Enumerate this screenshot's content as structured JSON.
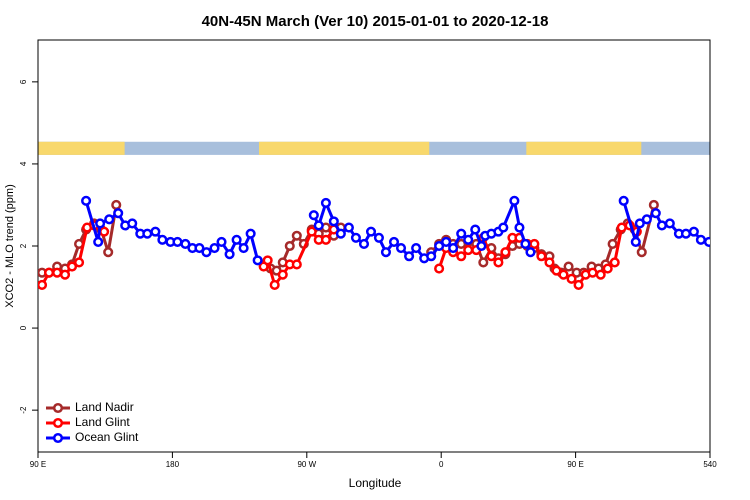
{
  "chart_data": {
    "type": "line",
    "title": "40N-45N March (Ver 10)   2015-01-01 to 2020-12-18",
    "x_label": "Longitude",
    "y_label": "XCO2 - MLO trend (ppm)",
    "xlim": [
      90,
      540
    ],
    "ylim": [
      -3.02,
      7.02
    ],
    "xticks": [
      {
        "value": 90,
        "label": "90 E"
      },
      180,
      {
        "value": 270,
        "label": "90 W"
      },
      {
        "value": 360,
        "label": "0"
      },
      {
        "value": 450,
        "label": "90 E"
      },
      540
    ],
    "yticks": [
      -2,
      0,
      2,
      4,
      6
    ],
    "legend": "bottom-left",
    "land_mask": {
      "land_color": "#f8d86c",
      "ocean_color": "#a8bfdc",
      "ylim": [
        4.22,
        4.54
      ],
      "land": [
        [
          90,
          148
        ],
        [
          238,
          352
        ],
        [
          417,
          494
        ]
      ]
    },
    "series": [
      {
        "name": "Land Nadir",
        "color": "#a52a2a",
        "x": [
          92.7,
          97.4,
          102.8,
          108.1,
          112.8,
          117.5,
          122.2,
          127.6,
          132.3,
          137.0,
          142.4,
          200,
          241.1,
          245.8,
          249.8,
          253.9,
          258.6,
          263.3,
          268.0,
          273.3,
          278.0,
          282.8,
          288.1,
          292.8,
          320,
          353.3,
          358.6,
          363.3,
          368.0,
          373.4,
          378.1,
          383.5,
          388.2,
          393.6,
          398.3,
          403.0,
          407.7,
          412.4,
          417.7,
          422.4,
          427.1,
          432.5,
          435.9,
          440.6,
          445.3,
          450.7,
          455.4,
          460.7,
          465.4,
          470.1,
          474.8,
          480.2,
          484.9,
          489.6,
          494.3,
          502.4
        ],
        "values": [
          1.35,
          1.35,
          1.5,
          1.45,
          1.55,
          2.05,
          2.4,
          2.55,
          2.4,
          1.85,
          3.0,
          null,
          1.55,
          1.45,
          1.4,
          1.6,
          2.0,
          2.25,
          2.05,
          2.4,
          2.3,
          2.45,
          2.25,
          2.45,
          null,
          1.85,
          2.05,
          2.15,
          2.05,
          2.05,
          2.1,
          2.05,
          1.6,
          1.95,
          1.7,
          1.8,
          2.0,
          2.05,
          2.0,
          1.95,
          1.8,
          1.75,
          1.45,
          1.35,
          1.5,
          1.35,
          1.35,
          1.5,
          1.45,
          1.55,
          2.05,
          2.4,
          2.55,
          2.4,
          1.85,
          3.0
        ]
      },
      {
        "name": "Land Glint",
        "color": "#ff0000",
        "x": [
          92.7,
          97.4,
          102.8,
          108.1,
          112.8,
          117.5,
          122.9,
          127.6,
          134.3,
          200,
          241.1,
          243.8,
          248.5,
          253.9,
          258.6,
          263.3,
          273.3,
          278.0,
          282.8,
          288.1,
          320,
          358.6,
          363.3,
          368.0,
          373.4,
          378.1,
          383.5,
          388.2,
          393.6,
          398.3,
          403.0,
          407.7,
          412.4,
          417.7,
          422.4,
          427.1,
          432.5,
          437.2,
          441.9,
          447.3,
          452.0,
          456.7,
          461.4,
          466.8,
          471.5,
          476.2,
          480.9,
          486.2,
          491.0
        ],
        "values": [
          1.05,
          1.35,
          1.35,
          1.3,
          1.5,
          1.6,
          2.45,
          2.5,
          2.35,
          null,
          1.5,
          1.65,
          1.05,
          1.3,
          1.55,
          1.55,
          2.35,
          2.15,
          2.15,
          2.4,
          null,
          1.45,
          1.95,
          1.85,
          1.75,
          1.9,
          1.9,
          2.2,
          1.75,
          1.6,
          1.85,
          2.2,
          2.2,
          2.05,
          2.05,
          1.75,
          1.6,
          1.4,
          1.3,
          1.2,
          1.05,
          1.3,
          1.35,
          1.3,
          1.45,
          1.6,
          2.45,
          2.5,
          2.35
        ]
      },
      {
        "name": "Ocean Glint",
        "color": "#0000ff",
        "x": [
          122.2,
          130.3,
          131.6,
          137.7,
          143.7,
          148.4,
          153.1,
          158.5,
          163.2,
          168.6,
          173.3,
          178.7,
          183.4,
          188.7,
          193.4,
          198.1,
          202.8,
          208.2,
          212.9,
          218.3,
          223.0,
          227.7,
          232.4,
          237.1,
          255,
          274.7,
          278.0,
          282.8,
          288.1,
          292.8,
          298.2,
          302.9,
          308.3,
          313.0,
          318.3,
          323.0,
          328.4,
          333.1,
          338.5,
          343.2,
          348.6,
          353.3,
          358.6,
          363.3,
          368.0,
          373.4,
          378.1,
          382.8,
          386.9,
          389.5,
          393.6,
          398.3,
          401.6,
          409.0,
          412.4,
          416.4,
          419.8,
          450,
          482.2,
          490.3,
          493.0,
          497.7,
          503.7,
          507.8,
          513.1,
          519.2,
          523.9,
          529.2,
          533.9,
          539.3
        ],
        "values": [
          3.1,
          2.1,
          2.55,
          2.65,
          2.8,
          2.5,
          2.55,
          2.3,
          2.3,
          2.35,
          2.15,
          2.1,
          2.1,
          2.05,
          1.95,
          1.95,
          1.85,
          1.95,
          2.1,
          1.8,
          2.15,
          1.95,
          2.3,
          1.65,
          null,
          2.75,
          2.5,
          3.05,
          2.6,
          2.3,
          2.45,
          2.2,
          2.05,
          2.35,
          2.2,
          1.85,
          2.1,
          1.95,
          1.75,
          1.95,
          1.7,
          1.75,
          2.0,
          2.1,
          1.95,
          2.3,
          2.15,
          2.4,
          2.0,
          2.25,
          2.3,
          2.35,
          2.45,
          3.1,
          2.45,
          2.05,
          1.85,
          null,
          3.1,
          2.1,
          2.55,
          2.65,
          2.8,
          2.5,
          2.55,
          2.3,
          2.3,
          2.35,
          2.15,
          2.1
        ]
      }
    ]
  }
}
